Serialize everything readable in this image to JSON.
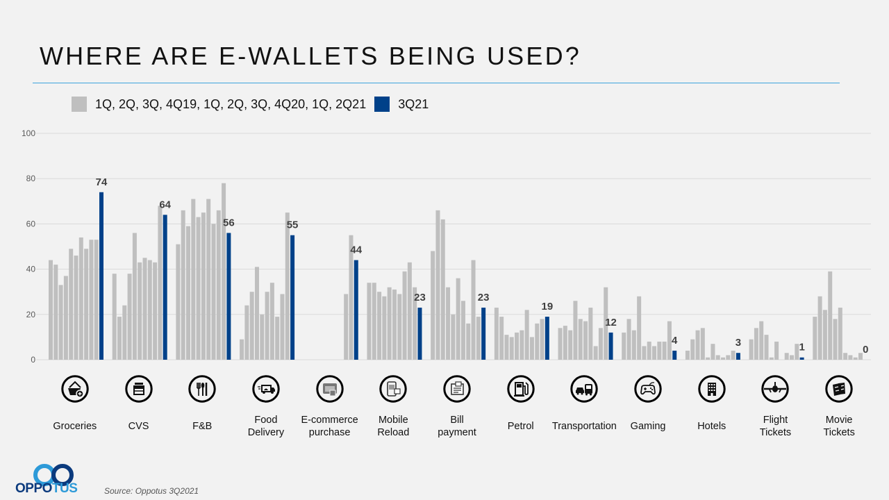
{
  "title": "WHERE ARE E-WALLETS BEING USED?",
  "legend": {
    "historical": {
      "label": "1Q, 2Q, 3Q, 4Q19, 1Q, 2Q, 3Q, 4Q20, 1Q, 2Q21",
      "color": "#bfbfbf"
    },
    "current": {
      "label": "3Q21",
      "color": "#004189"
    }
  },
  "source": "Source: Oppotus 3Q2021",
  "logo": {
    "part1": "OPPO",
    "part2": "TUS"
  },
  "categories_meta": [
    {
      "label_lines": [
        "Groceries"
      ],
      "icon": "shopping-basket-icon"
    },
    {
      "label_lines": [
        "CVS"
      ],
      "icon": "convenience-store-icon"
    },
    {
      "label_lines": [
        "F&B"
      ],
      "icon": "cutlery-icon"
    },
    {
      "label_lines": [
        "Food",
        "Delivery"
      ],
      "icon": "delivery-truck-icon"
    },
    {
      "label_lines": [
        "E-commerce",
        "purchase"
      ],
      "icon": "online-shop-icon"
    },
    {
      "label_lines": [
        "Mobile",
        "Reload"
      ],
      "icon": "mobile-phone-icon"
    },
    {
      "label_lines": [
        "Bill",
        "payment"
      ],
      "icon": "bill-receipt-icon"
    },
    {
      "label_lines": [
        "Petrol"
      ],
      "icon": "fuel-pump-icon"
    },
    {
      "label_lines": [
        "Transportation"
      ],
      "icon": "car-bus-icon"
    },
    {
      "label_lines": [
        "Gaming"
      ],
      "icon": "game-controller-icon"
    },
    {
      "label_lines": [
        "Hotels"
      ],
      "icon": "hotel-building-icon"
    },
    {
      "label_lines": [
        "Flight",
        "Tickets"
      ],
      "icon": "airplane-icon"
    },
    {
      "label_lines": [
        "Movie",
        "Tickets"
      ],
      "icon": "movie-ticket-icon"
    }
  ],
  "chart_data": {
    "type": "bar",
    "title": "WHERE ARE E-WALLETS BEING USED?",
    "xlabel": "",
    "ylabel": "",
    "ylim": [
      0,
      100
    ],
    "yticks": [
      0,
      20,
      40,
      60,
      80,
      100
    ],
    "grid": true,
    "legend_position": "top-left",
    "categories": [
      "Groceries",
      "CVS",
      "F&B",
      "Food Delivery",
      "E-commerce purchase",
      "Mobile Reload",
      "Bill payment",
      "Petrol",
      "Transportation",
      "Gaming",
      "Hotels",
      "Flight Tickets",
      "Movie Tickets"
    ],
    "periods": [
      "1Q19",
      "2Q19",
      "3Q19",
      "4Q19",
      "1Q20",
      "2Q20",
      "3Q20",
      "4Q20",
      "1Q21",
      "2Q21",
      "3Q21"
    ],
    "series": [
      {
        "name": "1Q, 2Q, 3Q, 4Q19, 1Q, 2Q, 3Q, 4Q20, 1Q, 2Q21",
        "color": "#bfbfbf",
        "values": [
          [
            44,
            42,
            33,
            37,
            49,
            46,
            54,
            49,
            53,
            53
          ],
          [
            38,
            19,
            24,
            38,
            56,
            43,
            45,
            44,
            43,
            68
          ],
          [
            51,
            66,
            59,
            71,
            63,
            65,
            71,
            60,
            66,
            78
          ],
          [
            9,
            24,
            30,
            41,
            20,
            30,
            34,
            19,
            29,
            65
          ],
          [
            null,
            null,
            null,
            null,
            null,
            null,
            null,
            null,
            29,
            55
          ],
          [
            34,
            34,
            30,
            28,
            32,
            31,
            29,
            39,
            43,
            32
          ],
          [
            48,
            66,
            62,
            32,
            20,
            36,
            26,
            16,
            44,
            19
          ],
          [
            23,
            19,
            11,
            10,
            12,
            13,
            22,
            10,
            16,
            18
          ],
          [
            14,
            15,
            13,
            26,
            18,
            17,
            23,
            6,
            14,
            32
          ],
          [
            12,
            18,
            13,
            28,
            6,
            8,
            6,
            8,
            8,
            17
          ],
          [
            4,
            9,
            13,
            14,
            1,
            7,
            2,
            1,
            2,
            4
          ],
          [
            9,
            14,
            17,
            11,
            1,
            8,
            0,
            3,
            2,
            7
          ],
          [
            19,
            28,
            22,
            39,
            18,
            23,
            3,
            2,
            1,
            3
          ]
        ]
      },
      {
        "name": "3Q21",
        "color": "#004189",
        "values": [
          74,
          64,
          56,
          55,
          44,
          23,
          23,
          19,
          12,
          4,
          3,
          1,
          0
        ]
      }
    ]
  }
}
